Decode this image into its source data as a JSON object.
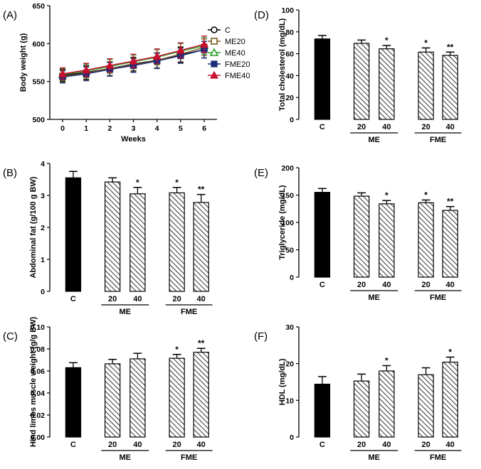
{
  "figure": {
    "colors": {
      "C": "#000000",
      "ME20": "#7a5a1e",
      "ME40": "#2aa02a",
      "FME20": "#1c2a7a",
      "FME40": "#c8102e",
      "axis": "#000000",
      "hatch_bar": "#ffffff"
    }
  },
  "chart_data": [
    {
      "id": "A",
      "panel_label": "(A)",
      "type": "line",
      "ylabel": "Body weight (g)",
      "xlabel": "Weeks",
      "ylim": [
        500,
        650
      ],
      "yticks": [
        "500",
        "550",
        "600",
        "650"
      ],
      "x": [
        "0",
        "1",
        "2",
        "3",
        "4",
        "5",
        "6"
      ],
      "series": [
        {
          "name": "C",
          "marker": "open-circle",
          "values": [
            558,
            562,
            567,
            573,
            578,
            585,
            592
          ],
          "err": [
            8,
            9,
            9,
            9,
            10,
            10,
            11
          ]
        },
        {
          "name": "ME20",
          "marker": "open-square",
          "values": [
            557,
            561,
            567,
            572,
            578,
            586,
            595
          ],
          "err": [
            8,
            9,
            9,
            9,
            10,
            10,
            11
          ]
        },
        {
          "name": "ME40",
          "marker": "open-triangle",
          "values": [
            559,
            564,
            570,
            576,
            582,
            590,
            597
          ],
          "err": [
            8,
            9,
            9,
            9,
            10,
            10,
            11
          ]
        },
        {
          "name": "FME20",
          "marker": "filled-square",
          "values": [
            556,
            560,
            566,
            571,
            577,
            584,
            592
          ],
          "err": [
            8,
            9,
            9,
            9,
            10,
            10,
            11
          ]
        },
        {
          "name": "FME40",
          "marker": "filled-triangle",
          "values": [
            560,
            565,
            571,
            577,
            583,
            591,
            599
          ],
          "err": [
            8,
            9,
            9,
            9,
            10,
            10,
            11
          ]
        }
      ]
    },
    {
      "id": "B",
      "panel_label": "(B)",
      "type": "bar",
      "ylabel": "Abdominal fat (g/100 g BW)",
      "ylim": [
        0,
        4
      ],
      "yticks": [
        "0",
        "1",
        "2",
        "3",
        "4"
      ],
      "categories": [
        "C",
        "20",
        "40",
        "20",
        "40"
      ],
      "groups": [
        "ME",
        "FME"
      ],
      "values": [
        3.55,
        3.42,
        3.05,
        3.08,
        2.78
      ],
      "err": [
        0.2,
        0.13,
        0.2,
        0.17,
        0.25
      ],
      "sig": [
        "",
        "",
        "*",
        "*",
        "**"
      ]
    },
    {
      "id": "C",
      "panel_label": "(C)",
      "type": "bar",
      "ylabel": "Hind limbs muscle weight (g/g BW)",
      "ylim": [
        0,
        0.1
      ],
      "yticks": [
        "0.00",
        "0.02",
        "0.04",
        "0.06",
        "0.08",
        "0.10"
      ],
      "categories": [
        "C",
        "20",
        "40",
        "20",
        "40"
      ],
      "groups": [
        "ME",
        "FME"
      ],
      "values": [
        0.063,
        0.0665,
        0.071,
        0.0715,
        0.077
      ],
      "err": [
        0.0045,
        0.004,
        0.005,
        0.0035,
        0.0035
      ],
      "sig": [
        "",
        "",
        "",
        "*",
        "**"
      ]
    },
    {
      "id": "D",
      "panel_label": "(D)",
      "type": "bar",
      "ylabel": "Total cholesterol (mg/dL)",
      "ylim": [
        0,
        100
      ],
      "yticks": [
        "0",
        "20",
        "40",
        "60",
        "80",
        "100"
      ],
      "categories": [
        "C",
        "20",
        "40",
        "20",
        "40"
      ],
      "groups": [
        "ME",
        "FME"
      ],
      "values": [
        73.5,
        69.5,
        64.5,
        61.5,
        58.5
      ],
      "err": [
        3.2,
        3.0,
        3.0,
        3.8,
        3.0
      ],
      "sig": [
        "",
        "",
        "*",
        "*",
        "**"
      ]
    },
    {
      "id": "E",
      "panel_label": "(E)",
      "type": "bar",
      "ylabel": "Triglyceride (mg/dL)",
      "ylim": [
        0,
        200
      ],
      "yticks": [
        "0",
        "50",
        "100",
        "150",
        "200"
      ],
      "categories": [
        "C",
        "20",
        "40",
        "20",
        "40"
      ],
      "groups": [
        "ME",
        "FME"
      ],
      "values": [
        155,
        148,
        134,
        136,
        122
      ],
      "err": [
        7,
        6,
        6,
        5,
        7
      ],
      "sig": [
        "",
        "",
        "*",
        "*",
        "**"
      ]
    },
    {
      "id": "F",
      "panel_label": "(F)",
      "type": "bar",
      "ylabel": "HDL (mg/dL)",
      "ylim": [
        0,
        35
      ],
      "yticks": [
        "0",
        "10",
        "20",
        "30"
      ],
      "categories": [
        "C",
        "20",
        "40",
        "20",
        "40"
      ],
      "groups": [
        "ME",
        "FME"
      ],
      "values": [
        16.8,
        17.8,
        21.0,
        19.8,
        23.8
      ],
      "err": [
        2.4,
        2.2,
        1.7,
        2.2,
        1.6
      ],
      "sig": [
        "",
        "",
        "*",
        "",
        "*"
      ]
    }
  ]
}
